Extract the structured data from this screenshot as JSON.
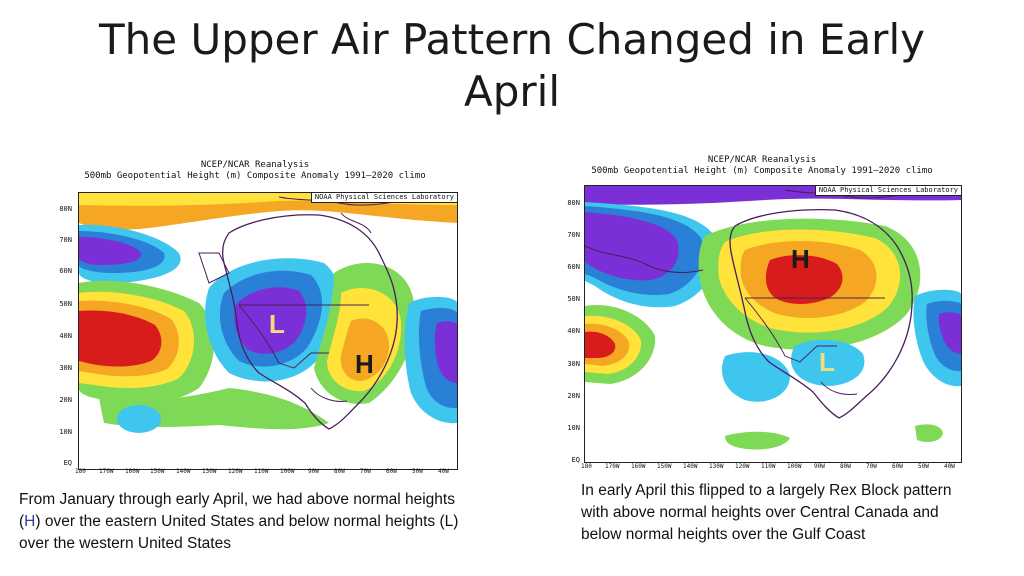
{
  "slide": {
    "title": "The Upper Air Pattern Changed in Early April"
  },
  "maps": [
    {
      "header_line1": "NCEP/NCAR Reanalysis",
      "header_line2": "500mb Geopotential Height (m) Composite Anomaly 1991–2020 climo",
      "credit": "NOAA Physical Sciences Laboratory",
      "lat_labels": [
        "80N",
        "70N",
        "60N",
        "50N",
        "40N",
        "30N",
        "20N",
        "10N",
        "EQ"
      ],
      "lon_labels": [
        "180",
        "170W",
        "160W",
        "150W",
        "140W",
        "130W",
        "120W",
        "110W",
        "100W",
        "90W",
        "80W",
        "70W",
        "60W",
        "50W",
        "40W"
      ],
      "markers": {
        "low": "L",
        "high": "H"
      }
    },
    {
      "header_line1": "NCEP/NCAR Reanalysis",
      "header_line2": "500mb Geopotential Height (m) Composite Anomaly 1991–2020 climo",
      "credit": "NOAA Physical Sciences Laboratory",
      "lat_labels": [
        "80N",
        "70N",
        "60N",
        "50N",
        "40N",
        "30N",
        "20N",
        "10N",
        "EQ"
      ],
      "lon_labels": [
        "180",
        "170W",
        "160W",
        "150W",
        "140W",
        "130W",
        "120W",
        "110W",
        "100W",
        "90W",
        "80W",
        "70W",
        "60W",
        "50W",
        "40W"
      ],
      "markers": {
        "high": "H",
        "low": "L"
      }
    }
  ],
  "captions": {
    "left_part1": "From January through early April, we had above normal heights (",
    "left_h": "H",
    "left_part2": ") over the eastern United States and below normal heights  (L) over the western United States",
    "right": "In early April this flipped to a largely Rex Block pattern with above normal heights over Central Canada and below normal heights over the Gulf Coast"
  },
  "colors": {
    "strong_positive": "#d81b1b",
    "positive": "#f5a623",
    "weak_positive": "#ffe23a",
    "slight_positive": "#7ed957",
    "slight_negative": "#3fc6ef",
    "negative": "#2a7fd6",
    "strong_negative": "#7b2fd6",
    "marker_low": "#f3dd7b",
    "marker_high": "#1a1a1a"
  }
}
